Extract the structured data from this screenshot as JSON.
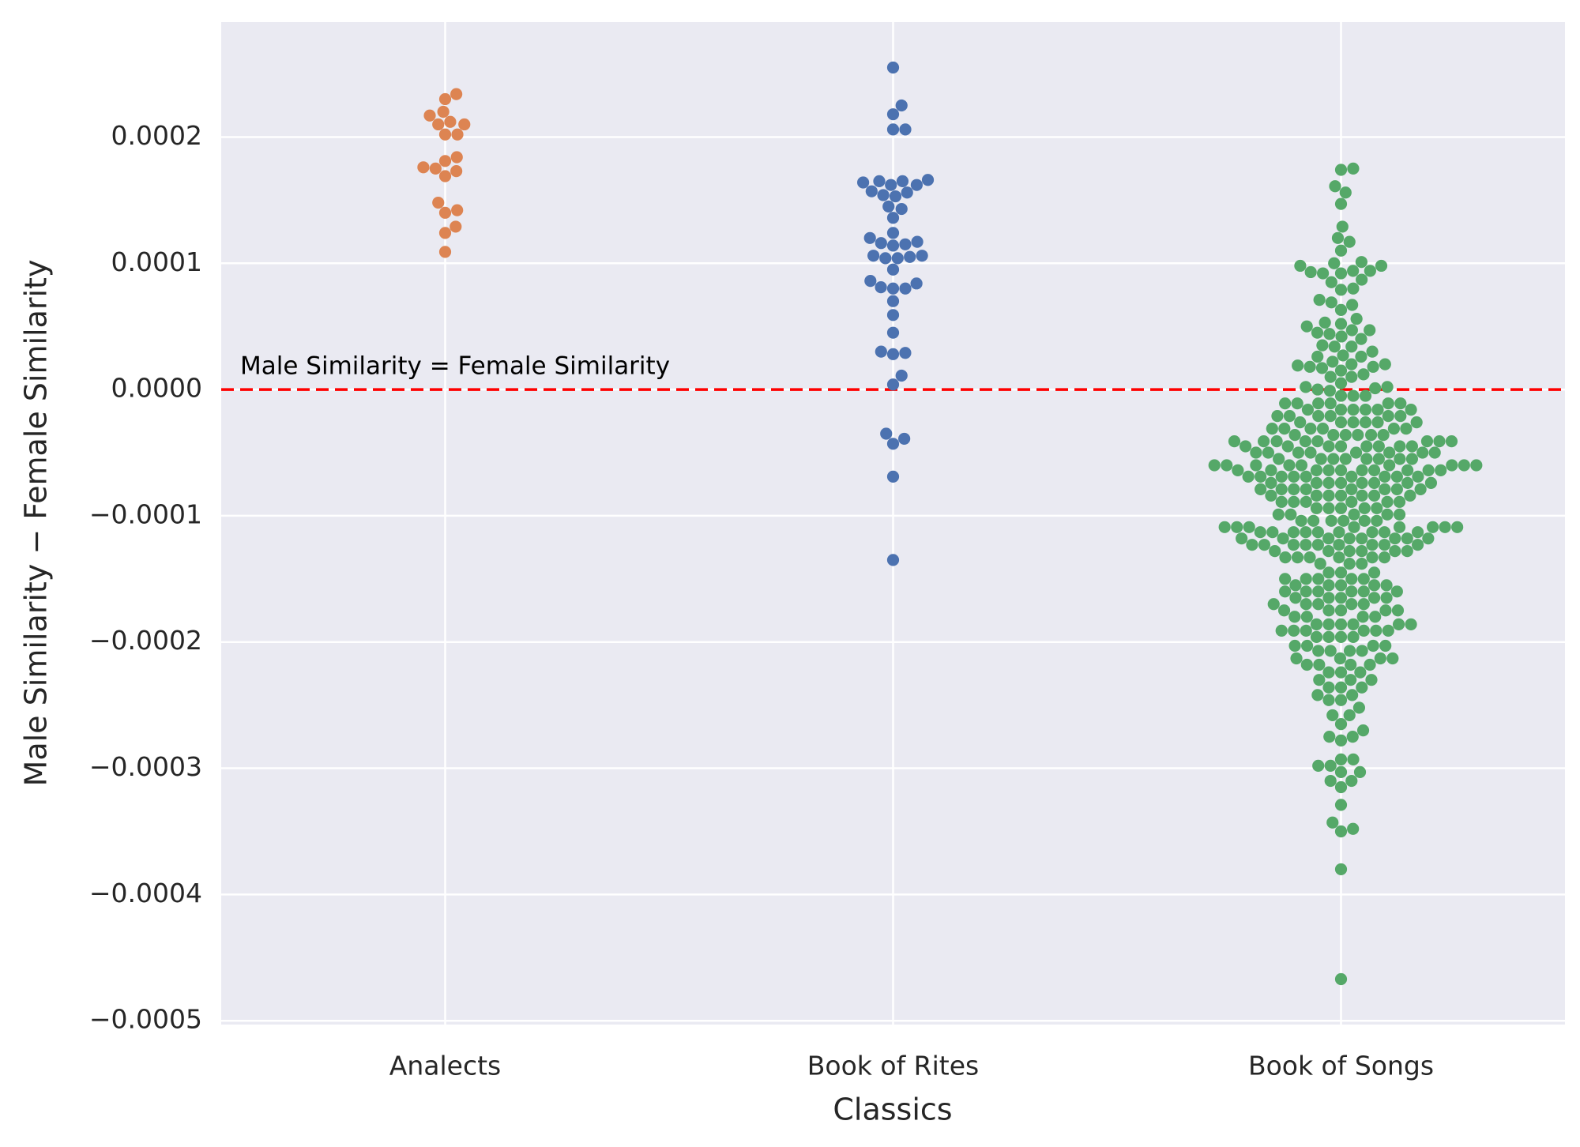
{
  "chart_data": {
    "type": "swarm",
    "x_label": "Classics",
    "y_label": "Male Similarity − Female Similarity",
    "categories": [
      "Analects",
      "Book of Rites",
      "Book of Songs"
    ],
    "colors": [
      "#dd8452",
      "#4c72b0",
      "#55a868"
    ],
    "grid": true,
    "reference_line": {
      "value": 0,
      "label": "Male Similarity = Female Similarity",
      "color": "#ff0000"
    },
    "ylim": [
      -0.000503,
      0.000291
    ],
    "yticks": [
      {
        "value": -0.0005,
        "label": "−0.0005"
      },
      {
        "value": -0.0004,
        "label": "−0.0004"
      },
      {
        "value": -0.0003,
        "label": "−0.0003"
      },
      {
        "value": -0.0002,
        "label": "−0.0002"
      },
      {
        "value": -0.0001,
        "label": "−0.0001"
      },
      {
        "value": 0,
        "label": "0.0000"
      },
      0.0001,
      0.0002
    ],
    "values": [
      [
        0.000234,
        0.00023,
        0.00022,
        0.000217,
        0.00021,
        0.00021,
        0.000212,
        0.000202,
        0.000202,
        0.000184,
        0.000181,
        0.000176,
        0.000173,
        0.000169,
        0.000175,
        0.000148,
        0.000142,
        0.00014,
        0.000129,
        0.000124,
        0.000109
      ],
      [
        0.000255,
        0.000225,
        0.000218,
        0.000206,
        0.000206,
        0.000166,
        0.000165,
        0.000164,
        0.000162,
        0.000165,
        0.000162,
        0.000157,
        0.000156,
        0.000154,
        0.000153,
        0.000145,
        0.000143,
        0.000136,
        0.000124,
        0.00012,
        0.000117,
        0.000116,
        0.000115,
        0.000114,
        0.000105,
        0.000106,
        0.000104,
        0.000106,
        0.000104,
        9.5e-05,
        8.6e-05,
        8.4e-05,
        8e-05,
        8.1e-05,
        8e-05,
        7e-05,
        5.9e-05,
        4.5e-05,
        3e-05,
        2.9e-05,
        2.8e-05,
        1.1e-05,
        4e-06,
        -3.9e-05,
        -3.5e-05,
        -4.3e-05,
        -6.9e-05,
        -0.000135
      ],
      [
        0.000175,
        0.000174,
        0.000161,
        0.000156,
        0.000147,
        0.000129,
        0.00012,
        0.000117,
        0.00011,
        0.000101,
        0.0001,
        9.8e-05,
        9.8e-05,
        9.4e-05,
        9.4e-05,
        9.3e-05,
        9.2e-05,
        9.2e-05,
        8.7e-05,
        8.5e-05,
        8e-05,
        7.9e-05,
        7.1e-05,
        6.9e-05,
        6.7e-05,
        6.3e-05,
        5.6e-05,
        5.3e-05,
        5.2e-05,
        5e-05,
        4.7e-05,
        4.7e-05,
        4.5e-05,
        4.4e-05,
        4.2e-05,
        4e-05,
        3.5e-05,
        3.4e-05,
        3.4e-05,
        3e-05,
        2.7e-05,
        2.6e-05,
        2.6e-05,
        2.2e-05,
        2e-05,
        2e-05,
        1.9e-05,
        1.8e-05,
        1.8e-05,
        1.7e-05,
        1.5e-05,
        1.2e-05,
        1e-05,
        1e-05,
        5e-06,
        2e-06,
        2e-06,
        1e-06,
        0,
        -1e-06,
        -5e-06,
        -5e-06,
        -5e-06,
        -1.1e-05,
        -1.1e-05,
        -1.1e-05,
        -1.1e-05,
        -1.1e-05,
        -1.1e-05,
        -1.6e-05,
        -1.6e-05,
        -1.6e-05,
        -1.6e-05,
        -1.6e-05,
        -1.6e-05,
        -2.1e-05,
        -2.1e-05,
        -2.1e-05,
        -2.1e-05,
        -2.1e-05,
        -2.1e-05,
        -2.6e-05,
        -2.6e-05,
        -2.6e-05,
        -2.6e-05,
        -2.6e-05,
        -2.6e-05,
        -3.1e-05,
        -3.1e-05,
        -3.1e-05,
        -3.1e-05,
        -3.1e-05,
        -3.1e-05,
        -3.6e-05,
        -3.6e-05,
        -3.6e-05,
        -3.6e-05,
        -3.6e-05,
        -3.6e-05,
        -4.1e-05,
        -4.1e-05,
        -4.1e-05,
        -4.1e-05,
        -4.1e-05,
        -4.1e-05,
        -4.1e-05,
        -4.1e-05,
        -4.5e-05,
        -4.5e-05,
        -4.5e-05,
        -4.5e-05,
        -4.5e-05,
        -4.5e-05,
        -4.5e-05,
        -4.5e-05,
        -5e-05,
        -5e-05,
        -5e-05,
        -5e-05,
        -5e-05,
        -5e-05,
        -5e-05,
        -5e-05,
        -5.5e-05,
        -5.5e-05,
        -5.5e-05,
        -5.5e-05,
        -5.5e-05,
        -5.5e-05,
        -5.5e-05,
        -5.5e-05,
        -6e-05,
        -6e-05,
        -6e-05,
        -6e-05,
        -6e-05,
        -6e-05,
        -6e-05,
        -6e-05,
        -6e-05,
        -6.4e-05,
        -6.4e-05,
        -6.4e-05,
        -6.4e-05,
        -6.4e-05,
        -6.4e-05,
        -6.4e-05,
        -6.4e-05,
        -6.4e-05,
        -6.4e-05,
        -6.9e-05,
        -6.9e-05,
        -6.9e-05,
        -6.9e-05,
        -6.9e-05,
        -6.9e-05,
        -6.9e-05,
        -6.9e-05,
        -6.9e-05,
        -7.4e-05,
        -7.4e-05,
        -7.4e-05,
        -7.4e-05,
        -7.4e-05,
        -7.4e-05,
        -7.4e-05,
        -7.4e-05,
        -7.9e-05,
        -7.9e-05,
        -7.9e-05,
        -7.9e-05,
        -7.9e-05,
        -7.9e-05,
        -7.9e-05,
        -7.9e-05,
        -8.4e-05,
        -8.4e-05,
        -8.4e-05,
        -8.4e-05,
        -8.4e-05,
        -8.4e-05,
        -8.4e-05,
        -8.9e-05,
        -8.9e-05,
        -8.9e-05,
        -8.9e-05,
        -8.9e-05,
        -8.9e-05,
        -9.4e-05,
        -9.4e-05,
        -9.4e-05,
        -9.4e-05,
        -9.4e-05,
        -9.9e-05,
        -9.9e-05,
        -9.9e-05,
        -9.9e-05,
        -9.9e-05,
        -0.000104,
        -0.000104,
        -0.000104,
        -0.000104,
        -0.000104,
        -0.000104,
        -0.000109,
        -0.000109,
        -0.000109,
        -0.000109,
        -0.000109,
        -0.000109,
        -0.000109,
        -0.000109,
        -0.000113,
        -0.000113,
        -0.000113,
        -0.000113,
        -0.000113,
        -0.000113,
        -0.000113,
        -0.000113,
        -0.000113,
        -0.000118,
        -0.000118,
        -0.000118,
        -0.000118,
        -0.000118,
        -0.000118,
        -0.000118,
        -0.000118,
        -0.000123,
        -0.000123,
        -0.000123,
        -0.000123,
        -0.000123,
        -0.000123,
        -0.000123,
        -0.000123,
        -0.000123,
        -0.000128,
        -0.000128,
        -0.000128,
        -0.000128,
        -0.000128,
        -0.000128,
        -0.000133,
        -0.000133,
        -0.000133,
        -0.000133,
        -0.000133,
        -0.000133,
        -0.000138,
        -0.000138,
        -0.000138,
        -0.000145,
        -0.000145,
        -0.000145,
        -0.00015,
        -0.00015,
        -0.00015,
        -0.00015,
        -0.00015,
        -0.000155,
        -0.000155,
        -0.000155,
        -0.000155,
        -0.000155,
        -0.00016,
        -0.00016,
        -0.00016,
        -0.00016,
        -0.00016,
        -0.00016,
        -0.000165,
        -0.000165,
        -0.000165,
        -0.000165,
        -0.000165,
        -0.00017,
        -0.00017,
        -0.00017,
        -0.00017,
        -0.00017,
        -0.000175,
        -0.000175,
        -0.000175,
        -0.000175,
        -0.000175,
        -0.00018,
        -0.00018,
        -0.00018,
        -0.00018,
        -0.000186,
        -0.000186,
        -0.000186,
        -0.000186,
        -0.000186,
        -0.000186,
        -0.000191,
        -0.000191,
        -0.000191,
        -0.000191,
        -0.000191,
        -0.000191,
        -0.000196,
        -0.000196,
        -0.000196,
        -0.000196,
        -0.000203,
        -0.000203,
        -0.000203,
        -0.000203,
        -0.000207,
        -0.000207,
        -0.000207,
        -0.000207,
        -0.000213,
        -0.000213,
        -0.000213,
        -0.000213,
        -0.000218,
        -0.000218,
        -0.000218,
        -0.000218,
        -0.000224,
        -0.000224,
        -0.000224,
        -0.00023,
        -0.00023,
        -0.00023,
        -0.000236,
        -0.000236,
        -0.000236,
        -0.000242,
        -0.000242,
        -0.000246,
        -0.000246,
        -0.000252,
        -0.000258,
        -0.000258,
        -0.000265,
        -0.00027,
        -0.000275,
        -0.000275,
        -0.000278,
        -0.000293,
        -0.000293,
        -0.000298,
        -0.000298,
        -0.000303,
        -0.000303,
        -0.00031,
        -0.00031,
        -0.000315,
        -0.000329,
        -0.000343,
        -0.000348,
        -0.00035,
        -0.00038,
        -0.000467
      ]
    ]
  }
}
